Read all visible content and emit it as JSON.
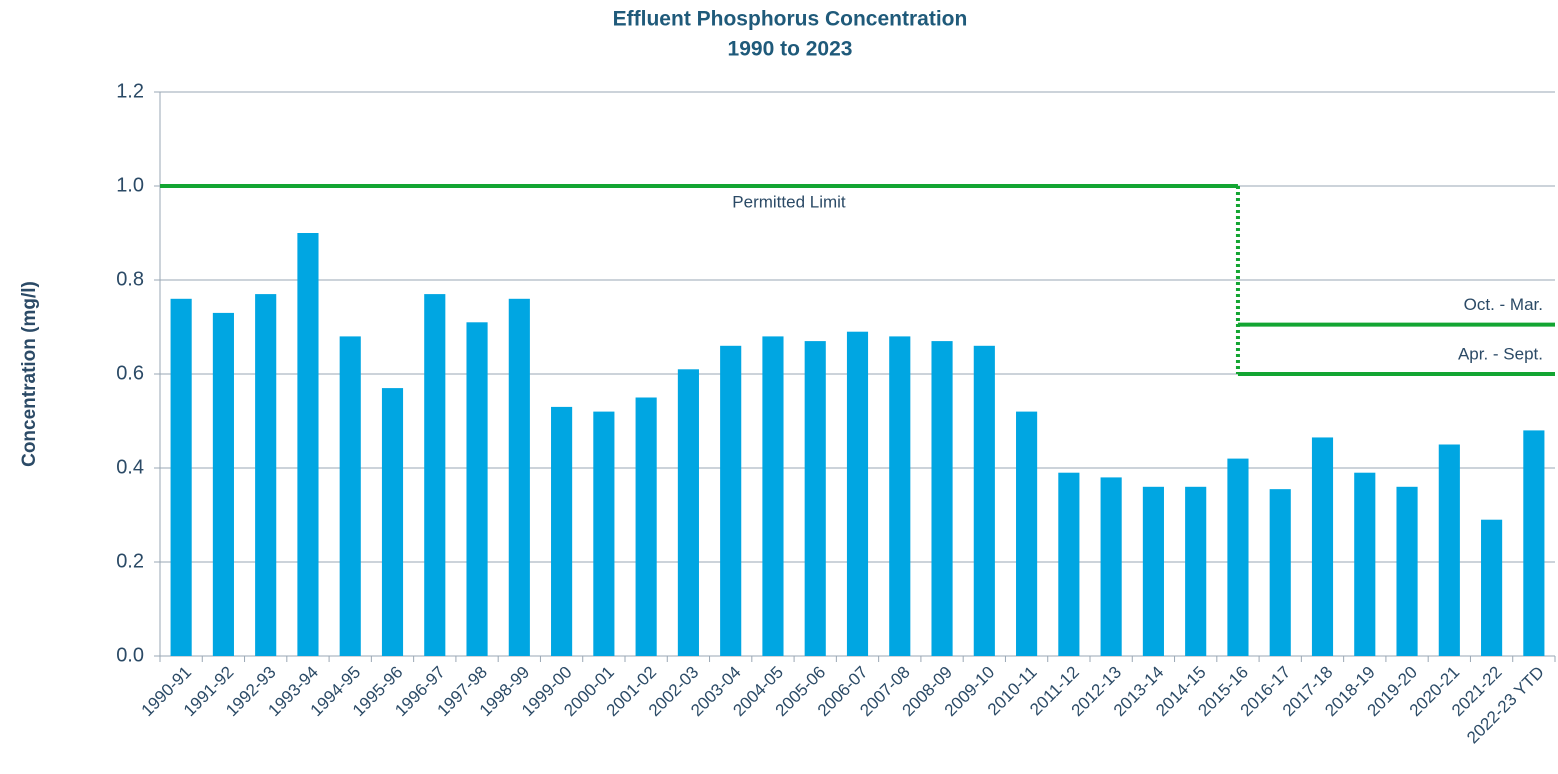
{
  "chart_data": {
    "type": "bar",
    "title": "Effluent Phosphorus Concentration",
    "subtitle": "1990 to 2023",
    "y_label": "Concentration (mg/l)",
    "categories": [
      "1990-91",
      "1991-92",
      "1992-93",
      "1993-94",
      "1994-95",
      "1995-96",
      "1996-97",
      "1997-98",
      "1998-99",
      "1999-00",
      "2000-01",
      "2001-02",
      "2002-03",
      "2003-04",
      "2004-05",
      "2005-06",
      "2006-07",
      "2007-08",
      "2008-09",
      "2009-10",
      "2010-11",
      "2011-12",
      "2012-13",
      "2013-14",
      "2014-15",
      "2015-16",
      "2016-17",
      "2017-18",
      "2018-19",
      "2019-20",
      "2020-21",
      "2021-22",
      "2022-23 YTD"
    ],
    "values": [
      0.76,
      0.73,
      0.77,
      0.9,
      0.68,
      0.57,
      0.77,
      0.71,
      0.76,
      0.53,
      0.52,
      0.55,
      0.61,
      0.66,
      0.68,
      0.67,
      0.69,
      0.68,
      0.67,
      0.66,
      0.52,
      0.39,
      0.38,
      0.36,
      0.36,
      0.42,
      0.355,
      0.465,
      0.39,
      0.36,
      0.45,
      0.29,
      0.48
    ],
    "color": "#00a6e2",
    "ylim": [
      0,
      1.2
    ],
    "yticks": [
      {
        "value": 0,
        "label": "0.0"
      },
      0.2,
      0.4,
      0.6,
      0.8,
      {
        "value": 1,
        "label": "1.0"
      },
      1.2
    ],
    "grid": true,
    "limits": [
      {
        "label": "Permitted Limit",
        "value": 1.0,
        "until": "2015-16",
        "color": "#13a532"
      },
      {
        "label": "Oct. - Mar.",
        "value": 0.705,
        "from": "2015-16",
        "color": "#13a532"
      },
      {
        "label": "Apr. - Sept.",
        "value": 0.6,
        "from": "2015-16",
        "color": "#13a532"
      }
    ]
  }
}
